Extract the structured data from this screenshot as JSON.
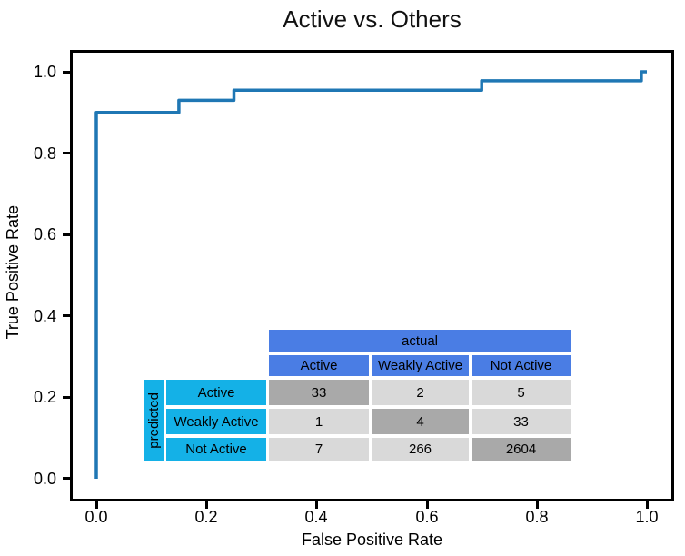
{
  "figure": {
    "title": "Active vs. Others"
  },
  "axes": {
    "xlabel": "False Positive Rate",
    "ylabel": "True Positive Rate",
    "xticks": [
      "0.0",
      "0.2",
      "0.4",
      "0.6",
      "0.8",
      "1.0"
    ],
    "yticks": [
      "1.0",
      "0.8",
      "0.6",
      "0.4",
      "0.2",
      "0.0"
    ]
  },
  "chart_data": {
    "type": "line",
    "title": "Active vs. Others",
    "xlabel": "False Positive Rate",
    "ylabel": "True Positive Rate",
    "xlim": [
      0.0,
      1.0
    ],
    "ylim": [
      0.0,
      1.0
    ],
    "xtick_values": [
      0.0,
      0.2,
      0.4,
      0.6,
      0.8,
      1.0
    ],
    "ytick_values": [
      0.0,
      0.2,
      0.4,
      0.6,
      0.8,
      1.0
    ],
    "grid": false,
    "legend": false,
    "series": [
      {
        "color": "#1f77b4",
        "line_width": 3.5,
        "points": [
          [
            0.0,
            0.0
          ],
          [
            0.0,
            0.9
          ],
          [
            0.15,
            0.9
          ],
          [
            0.15,
            0.93
          ],
          [
            0.25,
            0.93
          ],
          [
            0.25,
            0.955
          ],
          [
            0.7,
            0.955
          ],
          [
            0.7,
            0.978
          ],
          [
            0.99,
            0.978
          ],
          [
            0.99,
            1.0
          ],
          [
            1.0,
            1.0
          ]
        ]
      }
    ]
  },
  "confusion_matrix": {
    "column_axis_label": "actual",
    "row_axis_label": "predicted",
    "classes": [
      "Active",
      "Weakly Active",
      "Not Active"
    ],
    "rows": [
      {
        "label": "Active",
        "values": [
          "33",
          "2",
          "5"
        ]
      },
      {
        "label": "Weakly Active",
        "values": [
          "1",
          "4",
          "33"
        ]
      },
      {
        "label": "Not Active",
        "values": [
          "7",
          "266",
          "2604"
        ]
      }
    ],
    "diagonal_highlighted": true,
    "colors": {
      "header_blue": "#4a7de4",
      "row_header_cyan": "#14b1e7",
      "cell_light_gray": "#d9d9d9",
      "cell_diagonal_gray": "#a9a9a9"
    }
  },
  "colors": {
    "curve_blue": "#1f77b4",
    "background": "#ffffff",
    "frame": "#000000"
  }
}
